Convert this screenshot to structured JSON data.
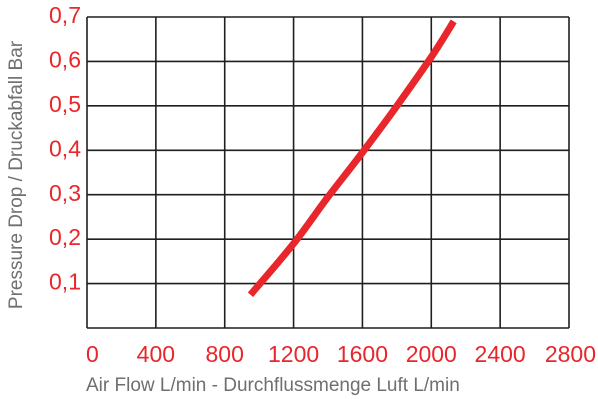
{
  "chart_data": {
    "type": "line",
    "xlabel": "Air Flow L/min - Durchflussmenge  Luft L/min",
    "ylabel": "Pressure Drop / Druckabfall Bar",
    "xlim": [
      0,
      2800
    ],
    "ylim": [
      0,
      0.7
    ],
    "x_ticks": [
      "0",
      "400",
      "800",
      "1200",
      "1600",
      "2000",
      "2400",
      "2800"
    ],
    "y_ticks": [
      "0,1",
      "0,2",
      "0,3",
      "0,4",
      "0,5",
      "0,6",
      "0,7"
    ],
    "grid": true,
    "series": [
      {
        "points": [
          {
            "x": 950,
            "y": 0.075
          },
          {
            "x": 1200,
            "y": 0.19
          },
          {
            "x": 1400,
            "y": 0.295
          },
          {
            "x": 1600,
            "y": 0.395
          },
          {
            "x": 1800,
            "y": 0.5
          },
          {
            "x": 2000,
            "y": 0.61
          },
          {
            "x": 2130,
            "y": 0.69
          }
        ]
      }
    ]
  },
  "colors": {
    "curve": "#e8262b",
    "tick_text": "#e8262b",
    "axis_label_text": "#6f6f6f",
    "grid": "#1f1f1f"
  }
}
